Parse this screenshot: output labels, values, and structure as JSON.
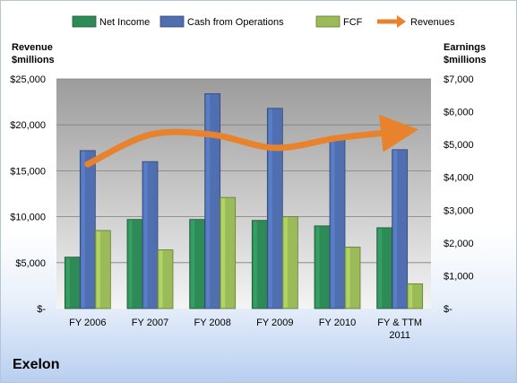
{
  "chart_data": {
    "type": "bar",
    "categories": [
      "FY 2006",
      "FY 2007",
      "FY 2008",
      "FY 2009",
      "FY 2010",
      "FY & TTM 2011"
    ],
    "y_left": {
      "label_lines": [
        "Revenue",
        "$millions"
      ],
      "range": [
        0,
        25000
      ],
      "tick_labels": [
        "$-",
        "$5,000",
        "$10,000",
        "$15,000",
        "$20,000",
        "$25,000"
      ]
    },
    "y_right": {
      "label_lines": [
        "Earnings",
        "$millions"
      ],
      "range": [
        0,
        7000
      ],
      "tick_labels": [
        "$-",
        "$1,000",
        "$2,000",
        "$3,000",
        "$4,000",
        "$5,000",
        "$6,000",
        "$7,000"
      ]
    },
    "series": [
      {
        "name": "Net Income",
        "axis": "left",
        "values": [
          5600,
          9700,
          9700,
          9600,
          9000,
          8800
        ],
        "color": "#2e8b57"
      },
      {
        "name": "Cash from Operations",
        "axis": "left",
        "values": [
          17200,
          16000,
          23400,
          21800,
          18600,
          17300
        ],
        "color": "#4f6fb0"
      },
      {
        "name": "FCF",
        "axis": "left",
        "values": [
          8500,
          6400,
          12100,
          10000,
          6700,
          2700
        ],
        "color": "#9bbb59"
      },
      {
        "name": "Revenues",
        "axis": "right",
        "type": "line",
        "values": [
          4400,
          5300,
          5300,
          4900,
          5200,
          5400
        ],
        "color": "#e9822c"
      }
    ],
    "legend_position": "top",
    "grid": true
  },
  "company_name": "Exelon"
}
